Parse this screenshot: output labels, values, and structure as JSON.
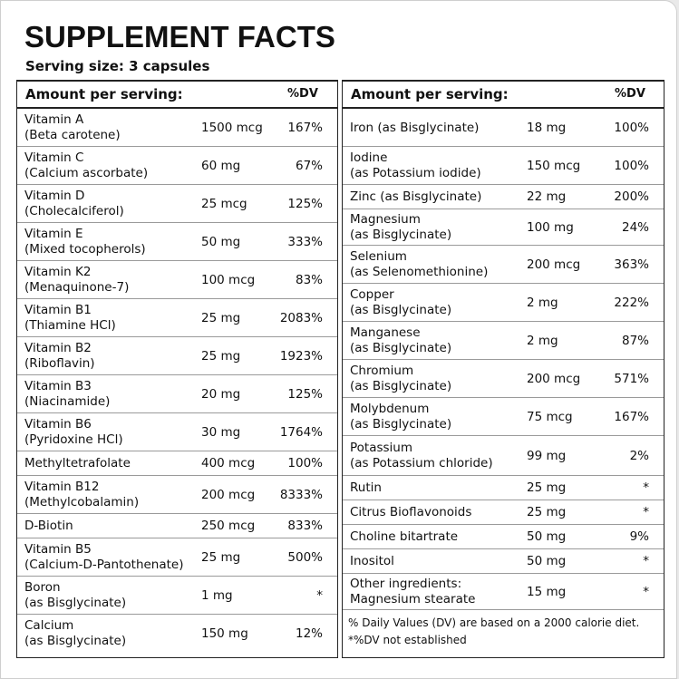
{
  "title": "SUPPLEMENT FACTS",
  "serving_size": "Serving size: 3 capsules",
  "header": {
    "amount": "Amount per serving:",
    "dv": "%DV"
  },
  "left_rows": [
    {
      "name1": "Vitamin A",
      "name2": "(Beta carotene)",
      "amount": "1500 mcg",
      "dv": "167%"
    },
    {
      "name1": "Vitamin C",
      "name2": "(Calcium ascorbate)",
      "amount": "60 mg",
      "dv": "67%"
    },
    {
      "name1": "Vitamin D",
      "name2": "(Cholecalciferol)",
      "amount": "25 mcg",
      "dv": "125%"
    },
    {
      "name1": "Vitamin E",
      "name2": "(Mixed tocopherols)",
      "amount": "50 mg",
      "dv": "333%"
    },
    {
      "name1": "Vitamin K2",
      "name2": "(Menaquinone-7)",
      "amount": "100 mcg",
      "dv": "83%"
    },
    {
      "name1": "Vitamin B1",
      "name2": "(Thiamine HCl)",
      "amount": "25 mg",
      "dv": "2083%"
    },
    {
      "name1": "Vitamin B2",
      "name2": "(Riboflavin)",
      "amount": "25 mg",
      "dv": "1923%"
    },
    {
      "name1": "Vitamin B3",
      "name2": "(Niacinamide)",
      "amount": "20 mg",
      "dv": "125%"
    },
    {
      "name1": "Vitamin B6",
      "name2": "(Pyridoxine HCl)",
      "amount": "30 mg",
      "dv": "1764%"
    },
    {
      "name1": "Methyltetrafolate",
      "name2": "",
      "amount": "400 mcg",
      "dv": "100%"
    },
    {
      "name1": "Vitamin B12",
      "name2": "(Methylcobalamin)",
      "amount": "200 mcg",
      "dv": "8333%"
    },
    {
      "name1": "D-Biotin",
      "name2": "",
      "amount": "250 mcg",
      "dv": "833%"
    },
    {
      "name1": "Vitamin B5",
      "name2": "(Calcium-D-Pantothenate)",
      "amount": "25 mg",
      "dv": "500%"
    },
    {
      "name1": "Boron",
      "name2": "(as Bisglycinate)",
      "amount": "1 mg",
      "dv": "*"
    },
    {
      "name1": "Calcium",
      "name2": "(as Bisglycinate)",
      "amount": "150 mg",
      "dv": "12%"
    }
  ],
  "right_rows": [
    {
      "name1": "Iron (as Bisglycinate)",
      "name2": "",
      "amount": "18 mg",
      "dv": "100%"
    },
    {
      "name1": "Iodine",
      "name2": "(as Potassium iodide)",
      "amount": "150 mcg",
      "dv": "100%"
    },
    {
      "name1": "Zinc (as Bisglycinate)",
      "name2": "",
      "amount": "22 mg",
      "dv": "200%"
    },
    {
      "name1": "Magnesium",
      "name2": "(as Bisglycinate)",
      "amount": "100 mg",
      "dv": "24%"
    },
    {
      "name1": "Selenium",
      "name2": "(as Selenomethionine)",
      "amount": "200 mcg",
      "dv": "363%"
    },
    {
      "name1": "Copper",
      "name2": "(as Bisglycinate)",
      "amount": "2 mg",
      "dv": "222%"
    },
    {
      "name1": "Manganese",
      "name2": "(as Bisglycinate)",
      "amount": "2 mg",
      "dv": "87%"
    },
    {
      "name1": "Chromium",
      "name2": "(as Bisglycinate)",
      "amount": "200 mcg",
      "dv": "571%"
    },
    {
      "name1": "Molybdenum",
      "name2": "(as Bisglycinate)",
      "amount": "75 mcg",
      "dv": "167%"
    },
    {
      "name1": "Potassium",
      "name2": "(as Potassium chloride)",
      "amount": "99 mg",
      "dv": "2%"
    },
    {
      "name1": "Rutin",
      "name2": "",
      "amount": "25 mg",
      "dv": "*"
    },
    {
      "name1": "Citrus Bioflavonoids",
      "name2": "",
      "amount": "25 mg",
      "dv": "*"
    },
    {
      "name1": "Choline bitartrate",
      "name2": "",
      "amount": "50 mg",
      "dv": "9%"
    },
    {
      "name1": "Inositol",
      "name2": "",
      "amount": "50 mg",
      "dv": "*"
    },
    {
      "name1": "Other ingredients:",
      "name2": "Magnesium stearate",
      "amount": "15 mg",
      "dv": "*"
    }
  ],
  "footnotes": [
    "% Daily Values (DV) are based on a 2000 calorie diet.",
    "*%DV not established"
  ]
}
